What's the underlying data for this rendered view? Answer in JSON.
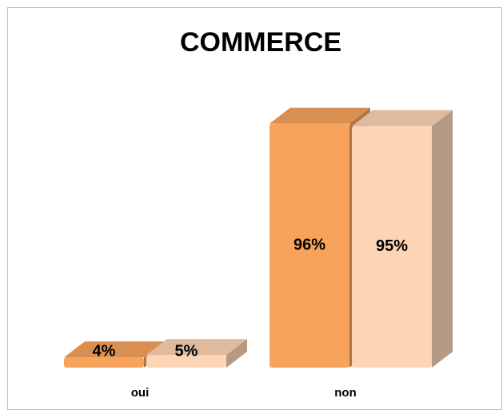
{
  "chart_data": {
    "type": "bar3d",
    "title": "COMMERCE",
    "categories": [
      "oui",
      "non"
    ],
    "series": [
      {
        "color": "#f7a35c",
        "values": [
          4,
          96
        ],
        "value_labels": [
          "4%",
          "96%"
        ]
      },
      {
        "color": "#fcd5b5",
        "values": [
          5,
          95
        ],
        "value_labels": [
          "5%",
          "95%"
        ]
      }
    ]
  }
}
